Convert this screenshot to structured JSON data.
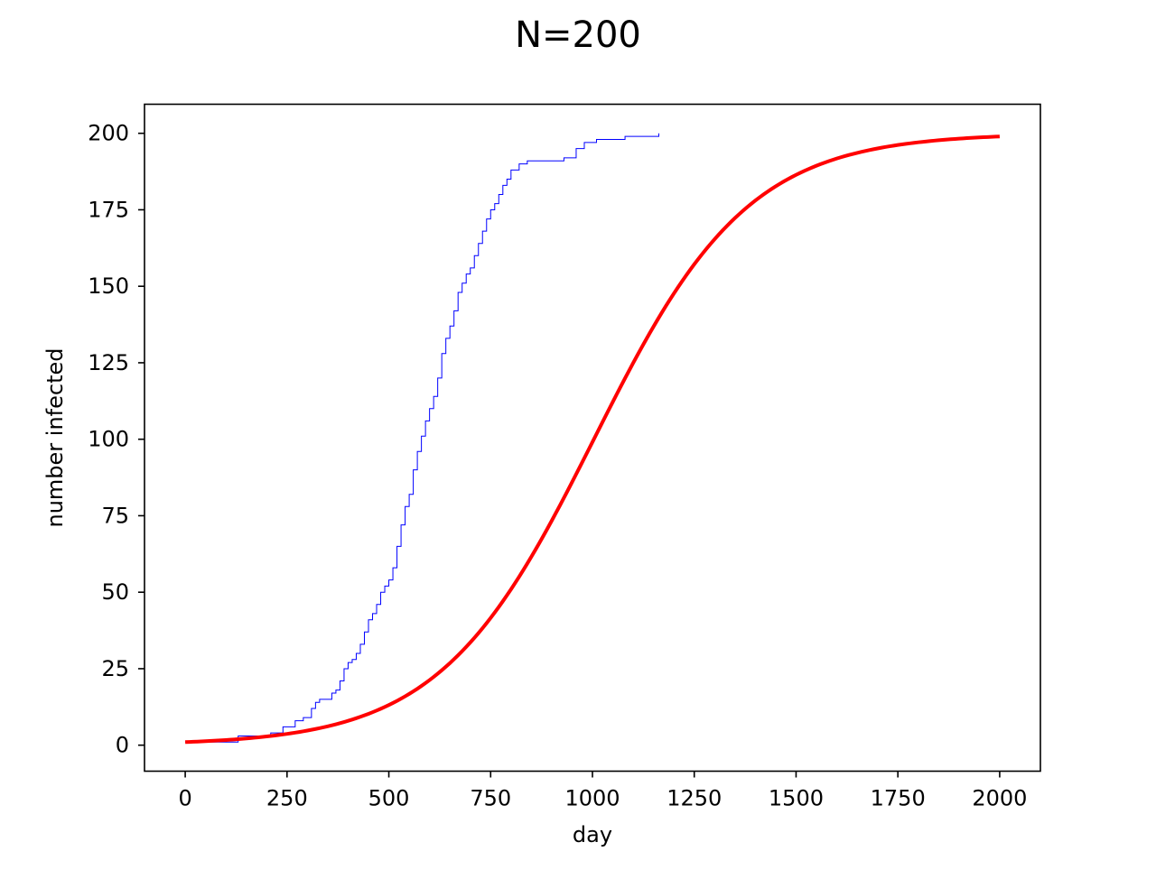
{
  "chart_data": {
    "type": "line",
    "title": "N=200",
    "xlabel": "day",
    "ylabel": "number infected",
    "xlim": [
      -100,
      2100
    ],
    "ylim": [
      -8.5,
      209.5
    ],
    "xticks": [
      0,
      250,
      500,
      750,
      1000,
      1250,
      1500,
      1750,
      2000
    ],
    "yticks": [
      0,
      25,
      50,
      75,
      100,
      125,
      150,
      175,
      200
    ],
    "grid": false,
    "legend": "none",
    "series": [
      {
        "style": "step",
        "color": "#0000ff",
        "line_width": "thin",
        "points": [
          [
            0,
            1
          ],
          [
            130,
            3
          ],
          [
            210,
            4
          ],
          [
            240,
            6
          ],
          [
            270,
            8
          ],
          [
            290,
            9
          ],
          [
            310,
            12
          ],
          [
            320,
            14
          ],
          [
            330,
            15
          ],
          [
            360,
            17
          ],
          [
            370,
            18
          ],
          [
            380,
            21
          ],
          [
            390,
            25
          ],
          [
            400,
            27
          ],
          [
            410,
            28
          ],
          [
            420,
            30
          ],
          [
            430,
            33
          ],
          [
            440,
            37
          ],
          [
            450,
            41
          ],
          [
            460,
            43
          ],
          [
            470,
            46
          ],
          [
            480,
            50
          ],
          [
            490,
            52
          ],
          [
            500,
            54
          ],
          [
            510,
            58
          ],
          [
            520,
            65
          ],
          [
            530,
            72
          ],
          [
            540,
            78
          ],
          [
            550,
            82
          ],
          [
            560,
            90
          ],
          [
            570,
            96
          ],
          [
            580,
            101
          ],
          [
            590,
            106
          ],
          [
            600,
            110
          ],
          [
            610,
            114
          ],
          [
            620,
            120
          ],
          [
            630,
            128
          ],
          [
            640,
            133
          ],
          [
            650,
            137
          ],
          [
            660,
            142
          ],
          [
            670,
            148
          ],
          [
            680,
            151
          ],
          [
            690,
            154
          ],
          [
            700,
            156
          ],
          [
            710,
            160
          ],
          [
            720,
            164
          ],
          [
            730,
            168
          ],
          [
            740,
            172
          ],
          [
            750,
            175
          ],
          [
            760,
            177
          ],
          [
            770,
            180
          ],
          [
            780,
            183
          ],
          [
            790,
            185
          ],
          [
            800,
            188
          ],
          [
            820,
            190
          ],
          [
            840,
            191
          ],
          [
            900,
            191
          ],
          [
            930,
            192
          ],
          [
            960,
            195
          ],
          [
            980,
            197
          ],
          [
            1010,
            198
          ],
          [
            1040,
            198
          ],
          [
            1080,
            199
          ],
          [
            1160,
            199
          ],
          [
            1163,
            200
          ]
        ]
      },
      {
        "style": "line",
        "color": "#ff0000",
        "line_width": "thick",
        "logistic": {
          "N": 200,
          "initial": 1,
          "rate": 0.005275,
          "t_start": 0,
          "t_end": 2000
        }
      }
    ]
  }
}
